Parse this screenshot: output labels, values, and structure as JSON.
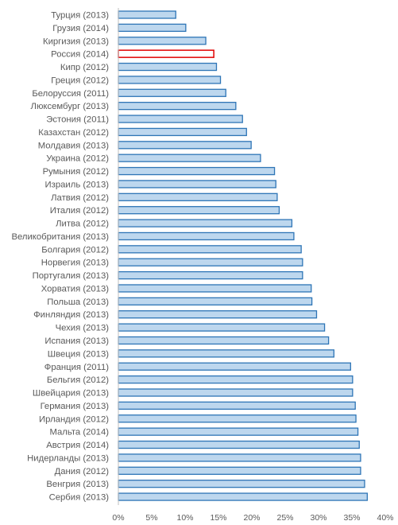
{
  "chart_data": {
    "type": "bar",
    "orientation": "horizontal",
    "title": "",
    "xlabel": "",
    "ylabel": "",
    "xlim": [
      0,
      40
    ],
    "x_ticks": [
      0,
      5,
      10,
      15,
      20,
      25,
      30,
      35,
      40
    ],
    "x_tick_labels": [
      "0%",
      "5%",
      "10%",
      "15%",
      "20%",
      "25%",
      "30%",
      "35%",
      "40%"
    ],
    "grid": false,
    "legend": "none",
    "colors": {
      "bar_fill": "#bdd7ee",
      "bar_stroke": "#2e75b6",
      "highlight_fill": "#ffffff",
      "highlight_stroke": "#e00000",
      "axis": "#bfbfbf",
      "text": "#595959"
    },
    "highlight": "Россия (2014)",
    "categories": [
      "Турция (2013)",
      "Грузия (2014)",
      "Киргизия (2013)",
      "Россия (2014)",
      "Кипр (2012)",
      "Греция (2012)",
      "Белоруссия (2011)",
      "Люксембург (2013)",
      "Эстония (2011)",
      "Казахстан (2012)",
      "Молдавия (2013)",
      "Украина (2012)",
      "Румыния (2012)",
      "Израиль (2013)",
      "Латвия (2012)",
      "Италия (2012)",
      "Литва (2012)",
      "Великобритания (2013)",
      "Болгария (2012)",
      "Норвегия (2013)",
      "Португалия (2013)",
      "Хорватия (2013)",
      "Польша (2013)",
      "Финляндия (2013)",
      "Чехия (2013)",
      "Испания (2013)",
      "Швеция (2013)",
      "Франция (2011)",
      "Бельгия (2012)",
      "Швейцария (2013)",
      "Германия (2013)",
      "Ирландия (2012)",
      "Мальта (2014)",
      "Австрия (2014)",
      "Нидерланды (2013)",
      "Дания (2012)",
      "Венгрия (2013)",
      "Сербия (2013)"
    ],
    "values": [
      8.6,
      10.1,
      13.1,
      14.3,
      14.7,
      15.3,
      16.1,
      17.6,
      18.6,
      19.2,
      19.9,
      21.3,
      23.4,
      23.6,
      23.8,
      24.1,
      26.0,
      26.3,
      27.4,
      27.6,
      27.6,
      28.9,
      29.0,
      29.7,
      30.9,
      31.5,
      32.3,
      34.8,
      35.1,
      35.1,
      35.5,
      35.6,
      35.9,
      36.1,
      36.3,
      36.3,
      36.9,
      37.3
    ]
  }
}
